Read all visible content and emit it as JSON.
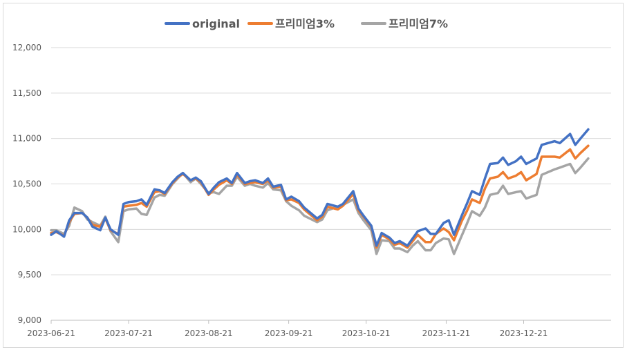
{
  "chart_data": {
    "type": "line",
    "title": "",
    "xlabel": "",
    "ylabel": "",
    "ylim": [
      9000,
      12000
    ],
    "y_ticks": [
      9000,
      9500,
      10000,
      10500,
      11000,
      11500,
      12000
    ],
    "y_tick_labels": [
      "9,000",
      "9,500",
      "10,000",
      "10,500",
      "11,000",
      "11,500",
      "12,000"
    ],
    "x_tick_labels": [
      "2023-06-21",
      "2023-07-21",
      "2023-08-21",
      "2023-09-21",
      "2023-10-21",
      "2023-11-21",
      "2023-12-21"
    ],
    "grid": true,
    "legend": "top",
    "x": [
      "2023-06-21",
      "2023-06-23",
      "2023-06-26",
      "2023-06-28",
      "2023-06-30",
      "2023-07-03",
      "2023-07-05",
      "2023-07-07",
      "2023-07-10",
      "2023-07-12",
      "2023-07-14",
      "2023-07-17",
      "2023-07-19",
      "2023-07-21",
      "2023-07-24",
      "2023-07-26",
      "2023-07-28",
      "2023-07-31",
      "2023-08-02",
      "2023-08-04",
      "2023-08-07",
      "2023-08-09",
      "2023-08-11",
      "2023-08-14",
      "2023-08-16",
      "2023-08-18",
      "2023-08-21",
      "2023-08-23",
      "2023-08-25",
      "2023-08-28",
      "2023-08-30",
      "2023-09-01",
      "2023-09-04",
      "2023-09-06",
      "2023-09-08",
      "2023-09-11",
      "2023-09-13",
      "2023-09-15",
      "2023-09-18",
      "2023-09-20",
      "2023-09-22",
      "2023-09-25",
      "2023-09-27",
      "2023-10-02",
      "2023-10-04",
      "2023-10-06",
      "2023-10-10",
      "2023-10-12",
      "2023-10-16",
      "2023-10-18",
      "2023-10-20",
      "2023-10-23",
      "2023-10-25",
      "2023-10-27",
      "2023-10-30",
      "2023-11-01",
      "2023-11-03",
      "2023-11-06",
      "2023-11-08",
      "2023-11-10",
      "2023-11-13",
      "2023-11-15",
      "2023-11-17",
      "2023-11-20",
      "2023-11-22",
      "2023-11-24",
      "2023-11-27",
      "2023-11-29",
      "2023-12-01",
      "2023-12-04",
      "2023-12-06",
      "2023-12-08",
      "2023-12-11",
      "2023-12-13",
      "2023-12-15",
      "2023-12-18",
      "2023-12-20",
      "2023-12-22",
      "2023-12-26",
      "2023-12-28",
      "2024-01-02",
      "2024-01-04",
      "2024-01-08",
      "2024-01-10",
      "2024-01-12",
      "2024-01-15"
    ],
    "series": [
      {
        "name": "original",
        "color": "#4472c4",
        "values": [
          9940,
          9980,
          9920,
          10100,
          10180,
          10180,
          10130,
          10030,
          9990,
          10130,
          10000,
          9940,
          10280,
          10300,
          10310,
          10330,
          10270,
          10440,
          10430,
          10400,
          10520,
          10580,
          10620,
          10540,
          10570,
          10530,
          10390,
          10460,
          10520,
          10560,
          10510,
          10620,
          10510,
          10530,
          10540,
          10510,
          10560,
          10470,
          10490,
          10330,
          10360,
          10310,
          10240,
          10120,
          10160,
          10280,
          10250,
          10280,
          10420,
          10230,
          10150,
          10040,
          9820,
          9960,
          9910,
          9850,
          9870,
          9820,
          9900,
          9980,
          10010,
          9950,
          9950,
          10070,
          10100,
          9940,
          10150,
          10280,
          10420,
          10380,
          10560,
          10720,
          10730,
          10790,
          10710,
          10750,
          10800,
          10720,
          10780,
          10930,
          10970,
          10950,
          11050,
          10930,
          11000,
          11100
        ]
      },
      {
        "name": "프리미엄3%",
        "color": "#ed7d31",
        "values": [
          9960,
          9970,
          9930,
          10080,
          10170,
          10180,
          10130,
          10050,
          10030,
          10120,
          9990,
          9950,
          10250,
          10260,
          10270,
          10290,
          10250,
          10410,
          10420,
          10390,
          10510,
          10570,
          10610,
          10540,
          10560,
          10520,
          10380,
          10440,
          10490,
          10540,
          10500,
          10600,
          10500,
          10510,
          10520,
          10500,
          10540,
          10460,
          10470,
          10320,
          10330,
          10290,
          10220,
          10100,
          10140,
          10250,
          10220,
          10260,
          10390,
          10210,
          10140,
          10030,
          9800,
          9940,
          9890,
          9830,
          9850,
          9800,
          9870,
          9940,
          9860,
          9860,
          9950,
          10010,
          9970,
          9880,
          10090,
          10200,
          10330,
          10290,
          10450,
          10560,
          10580,
          10630,
          10560,
          10590,
          10630,
          10540,
          10610,
          10800,
          10800,
          10790,
          10880,
          10780,
          10840,
          10920
        ]
      },
      {
        "name": "프리미엄7%",
        "color": "#a5a5a5",
        "values": [
          9990,
          9990,
          9950,
          10040,
          10240,
          10200,
          10110,
          10080,
          10040,
          10140,
          9980,
          9860,
          10200,
          10220,
          10230,
          10170,
          10160,
          10350,
          10380,
          10370,
          10500,
          10560,
          10620,
          10520,
          10560,
          10500,
          10400,
          10410,
          10390,
          10480,
          10480,
          10580,
          10480,
          10500,
          10480,
          10460,
          10510,
          10440,
          10430,
          10310,
          10260,
          10210,
          10150,
          10080,
          10110,
          10210,
          10250,
          10270,
          10330,
          10180,
          10100,
          9990,
          9730,
          9880,
          9870,
          9790,
          9790,
          9750,
          9820,
          9870,
          9770,
          9770,
          9850,
          9900,
          9890,
          9730,
          9930,
          10060,
          10200,
          10150,
          10240,
          10380,
          10400,
          10480,
          10390,
          10410,
          10420,
          10340,
          10380,
          10600,
          10660,
          10680,
          10720,
          10620,
          10680,
          10780
        ]
      }
    ]
  }
}
